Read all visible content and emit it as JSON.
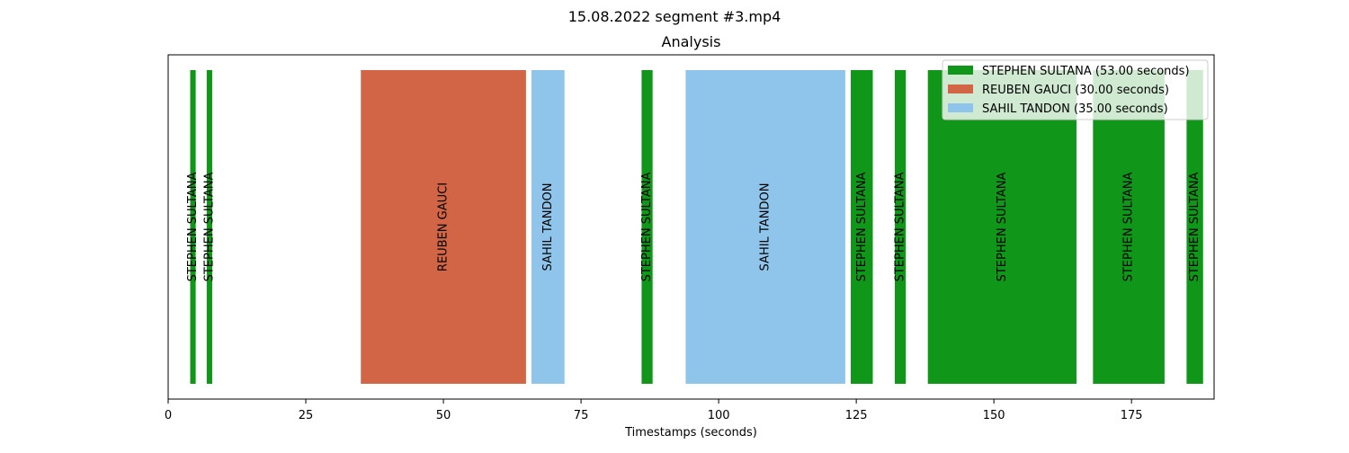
{
  "chart_data": {
    "type": "bar",
    "title": "Analysis",
    "suptitle": "15.08.2022 segment #3.mp4",
    "xlabel": "Timestamps (seconds)",
    "ylabel": "",
    "xlim": [
      0,
      190
    ],
    "xticks": [
      0,
      25,
      50,
      75,
      100,
      125,
      150,
      175
    ],
    "grid": false,
    "legend_position": "top-right",
    "speakers": [
      {
        "name": "STEPHEN SULTANA",
        "legend_label": "STEPHEN SULTANA (53.00 seconds)",
        "color": "#109618"
      },
      {
        "name": "REUBEN GAUCI",
        "legend_label": "REUBEN GAUCI (30.00 seconds)",
        "color": "#d16545"
      },
      {
        "name": "SAHIL TANDON",
        "legend_label": "SAHIL TANDON (35.00 seconds)",
        "color": "#8fc5ea"
      }
    ],
    "segments": [
      {
        "speaker": 0,
        "label": "STEPHEN SULTANA",
        "start": 4,
        "end": 5
      },
      {
        "speaker": 0,
        "label": "STEPHEN SULTANA",
        "start": 7,
        "end": 8
      },
      {
        "speaker": 1,
        "label": "REUBEN GAUCI",
        "start": 35,
        "end": 65
      },
      {
        "speaker": 2,
        "label": "SAHIL TANDON",
        "start": 66,
        "end": 72
      },
      {
        "speaker": 0,
        "label": "STEPHEN SULTANA",
        "start": 86,
        "end": 88
      },
      {
        "speaker": 2,
        "label": "SAHIL TANDON",
        "start": 94,
        "end": 123
      },
      {
        "speaker": 0,
        "label": "STEPHEN SULTANA",
        "start": 124,
        "end": 128
      },
      {
        "speaker": 0,
        "label": "STEPHEN SULTANA",
        "start": 132,
        "end": 134
      },
      {
        "speaker": 0,
        "label": "STEPHEN SULTANA",
        "start": 138,
        "end": 165
      },
      {
        "speaker": 0,
        "label": "STEPHEN SULTANA",
        "start": 168,
        "end": 181
      },
      {
        "speaker": 0,
        "label": "STEPHEN SULTANA",
        "start": 185,
        "end": 188
      }
    ]
  }
}
